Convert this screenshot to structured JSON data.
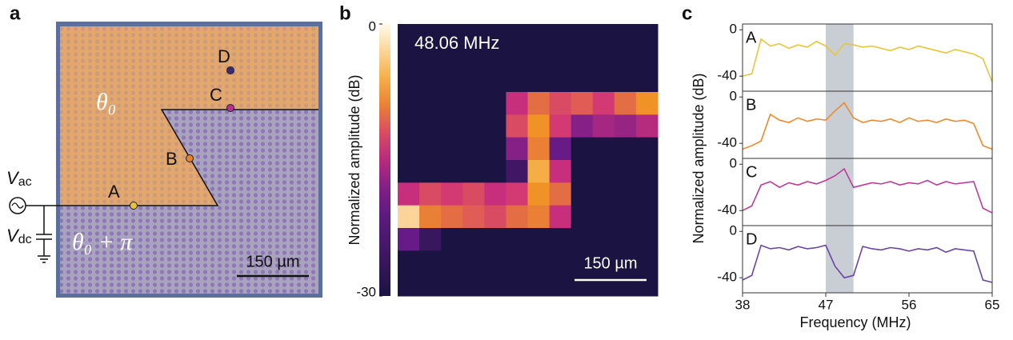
{
  "panel_a": {
    "label": "a",
    "points": [
      {
        "name": "D",
        "color": "#3b2a7a"
      },
      {
        "name": "C",
        "color": "#b8308f"
      },
      {
        "name": "B",
        "color": "#e8822a"
      },
      {
        "name": "A",
        "color": "#e9c23a"
      }
    ],
    "regions": [
      "θ₀",
      "θ₀ + π"
    ],
    "vac": {
      "symbol": "V",
      "subscript": "ac"
    },
    "vdc": {
      "symbol": "V",
      "subscript": "dc"
    },
    "scale_bar": "150 µm"
  },
  "chart_data": [
    {
      "type": "heatmap",
      "panel_label": "b",
      "annotation": "48.06 MHz",
      "colorbar_label": "Normalized amplitude (dB)",
      "clim": [
        -30,
        0
      ],
      "cticks": [
        0,
        -30
      ],
      "colormap": "inferno",
      "scale_bar": "150 µm",
      "values": [
        [
          -30,
          -30,
          -30,
          -30,
          -30,
          -30,
          -30,
          -30,
          -30,
          -30,
          -30,
          -30
        ],
        [
          -30,
          -30,
          -30,
          -30,
          -30,
          -30,
          -30,
          -30,
          -30,
          -30,
          -30,
          -30
        ],
        [
          -30,
          -30,
          -30,
          -30,
          -30,
          -30,
          -30,
          -30,
          -30,
          -30,
          -30,
          -30
        ],
        [
          -30,
          -30,
          -30,
          -30,
          -30,
          -14,
          -10,
          -12,
          -11,
          -13,
          -10,
          -8
        ],
        [
          -30,
          -30,
          -30,
          -30,
          -30,
          -12,
          -8,
          -13,
          -18,
          -16,
          -17,
          -15
        ],
        [
          -30,
          -30,
          -30,
          -30,
          -30,
          -18,
          -9,
          -20,
          -30,
          -30,
          -30,
          -30
        ],
        [
          -30,
          -30,
          -30,
          -30,
          -30,
          -25,
          -6,
          -14,
          -30,
          -30,
          -30,
          -30
        ],
        [
          -14,
          -12,
          -13,
          -12,
          -14,
          -13,
          -8,
          -10,
          -30,
          -30,
          -30,
          -30
        ],
        [
          -3,
          -9,
          -10,
          -11,
          -12,
          -10,
          -9,
          -14,
          -30,
          -30,
          -30,
          -30
        ],
        [
          -20,
          -26,
          -30,
          -30,
          -30,
          -30,
          -30,
          -30,
          -30,
          -30,
          -30,
          -30
        ],
        [
          -30,
          -30,
          -30,
          -30,
          -30,
          -30,
          -30,
          -30,
          -30,
          -30,
          -30,
          -30
        ],
        [
          -30,
          -30,
          -30,
          -30,
          -30,
          -30,
          -30,
          -30,
          -30,
          -30,
          -30,
          -30
        ]
      ]
    },
    {
      "type": "line",
      "panel_label": "c",
      "xlabel": "Frequency (MHz)",
      "ylabel": "Normalized amplitude (dB)",
      "x": [
        38,
        39,
        40,
        41,
        42,
        43,
        44,
        45,
        46,
        47,
        48,
        49,
        50,
        51,
        52,
        53,
        54,
        55,
        56,
        57,
        58,
        59,
        60,
        61,
        62,
        63,
        64,
        65
      ],
      "xlim": [
        38,
        65
      ],
      "xticks": [
        38,
        47,
        56,
        65
      ],
      "ylim": [
        -53,
        5
      ],
      "yticks": [
        0,
        -40
      ],
      "highlight": [
        47,
        50
      ],
      "series": [
        {
          "name": "A",
          "color": "#e8c53a",
          "values": [
            -40,
            -38,
            -8,
            -14,
            -12,
            -16,
            -13,
            -15,
            -10,
            -14,
            -22,
            -12,
            -13,
            -15,
            -14,
            -16,
            -18,
            -15,
            -17,
            -14,
            -16,
            -18,
            -20,
            -17,
            -19,
            -21,
            -25,
            -45
          ]
        },
        {
          "name": "B",
          "color": "#ef8a2c",
          "values": [
            -45,
            -42,
            -38,
            -15,
            -20,
            -22,
            -18,
            -21,
            -19,
            -20,
            -12,
            -5,
            -18,
            -22,
            -20,
            -21,
            -19,
            -22,
            -18,
            -21,
            -20,
            -22,
            -19,
            -21,
            -20,
            -23,
            -42,
            -45
          ]
        },
        {
          "name": "C",
          "color": "#c0399a",
          "values": [
            -40,
            -36,
            -18,
            -15,
            -20,
            -16,
            -18,
            -15,
            -17,
            -14,
            -10,
            -4,
            -20,
            -18,
            -16,
            -17,
            -15,
            -18,
            -16,
            -17,
            -14,
            -18,
            -15,
            -17,
            -16,
            -15,
            -38,
            -42
          ]
        },
        {
          "name": "D",
          "color": "#6a44a8",
          "values": [
            -42,
            -38,
            -12,
            -15,
            -14,
            -16,
            -13,
            -15,
            -14,
            -12,
            -30,
            -40,
            -38,
            -13,
            -15,
            -16,
            -14,
            -15,
            -17,
            -15,
            -16,
            -14,
            -18,
            -15,
            -16,
            -17,
            -42,
            -44
          ]
        }
      ]
    }
  ]
}
